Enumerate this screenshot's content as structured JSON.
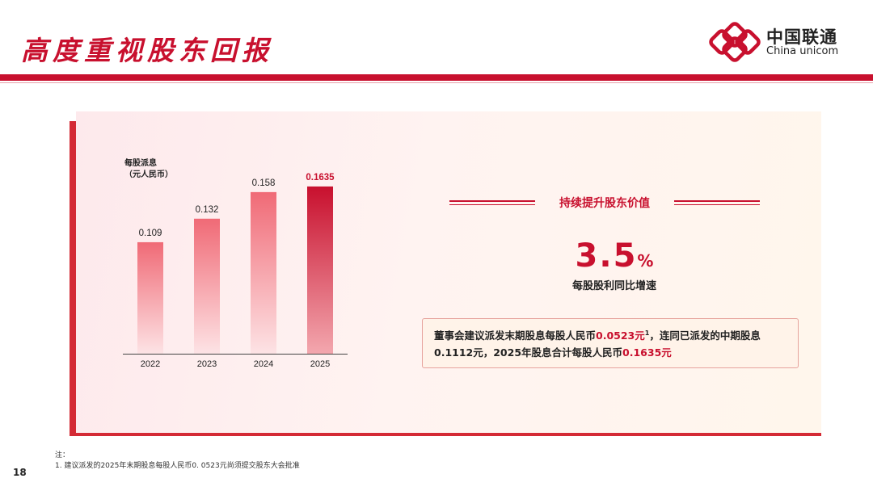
{
  "title": "高度重视股东回报",
  "logo": {
    "cn": "中国联通",
    "en": "China unicom"
  },
  "chart_data": {
    "type": "bar",
    "ylabel_line1": "每股派息",
    "ylabel_line2": "（元人民币）",
    "categories": [
      "2022",
      "2023",
      "2024",
      "2025"
    ],
    "values": [
      0.109,
      0.132,
      0.158,
      0.1635
    ],
    "labels": [
      "0.109",
      "0.132",
      "0.158",
      "0.1635"
    ],
    "ylim": [
      0,
      0.18
    ],
    "highlight_index": 3,
    "grid": false,
    "colors": {
      "bar": "#f07a84",
      "highlight": "#c8102e"
    }
  },
  "highlight": {
    "title": "持续提升股东价值",
    "value": "3.5",
    "unit": "%",
    "label": "每股股利同比增速"
  },
  "note": {
    "p1": "董事会建议派发末期股息每股人民币",
    "v1": "0.0523元",
    "sup": "1",
    "p2": "，连同已派发的中期股息",
    "p3": "0.1112元，2025年股息合计每股人民币",
    "v2": "0.1635元"
  },
  "footnote": {
    "heading": "注：",
    "line1": "1. 建议派发的2025年末期股息每股人民币0. 0523元尚须提交股东大会批准"
  },
  "page_number": "18",
  "colors": {
    "brand_red": "#c8102e"
  }
}
